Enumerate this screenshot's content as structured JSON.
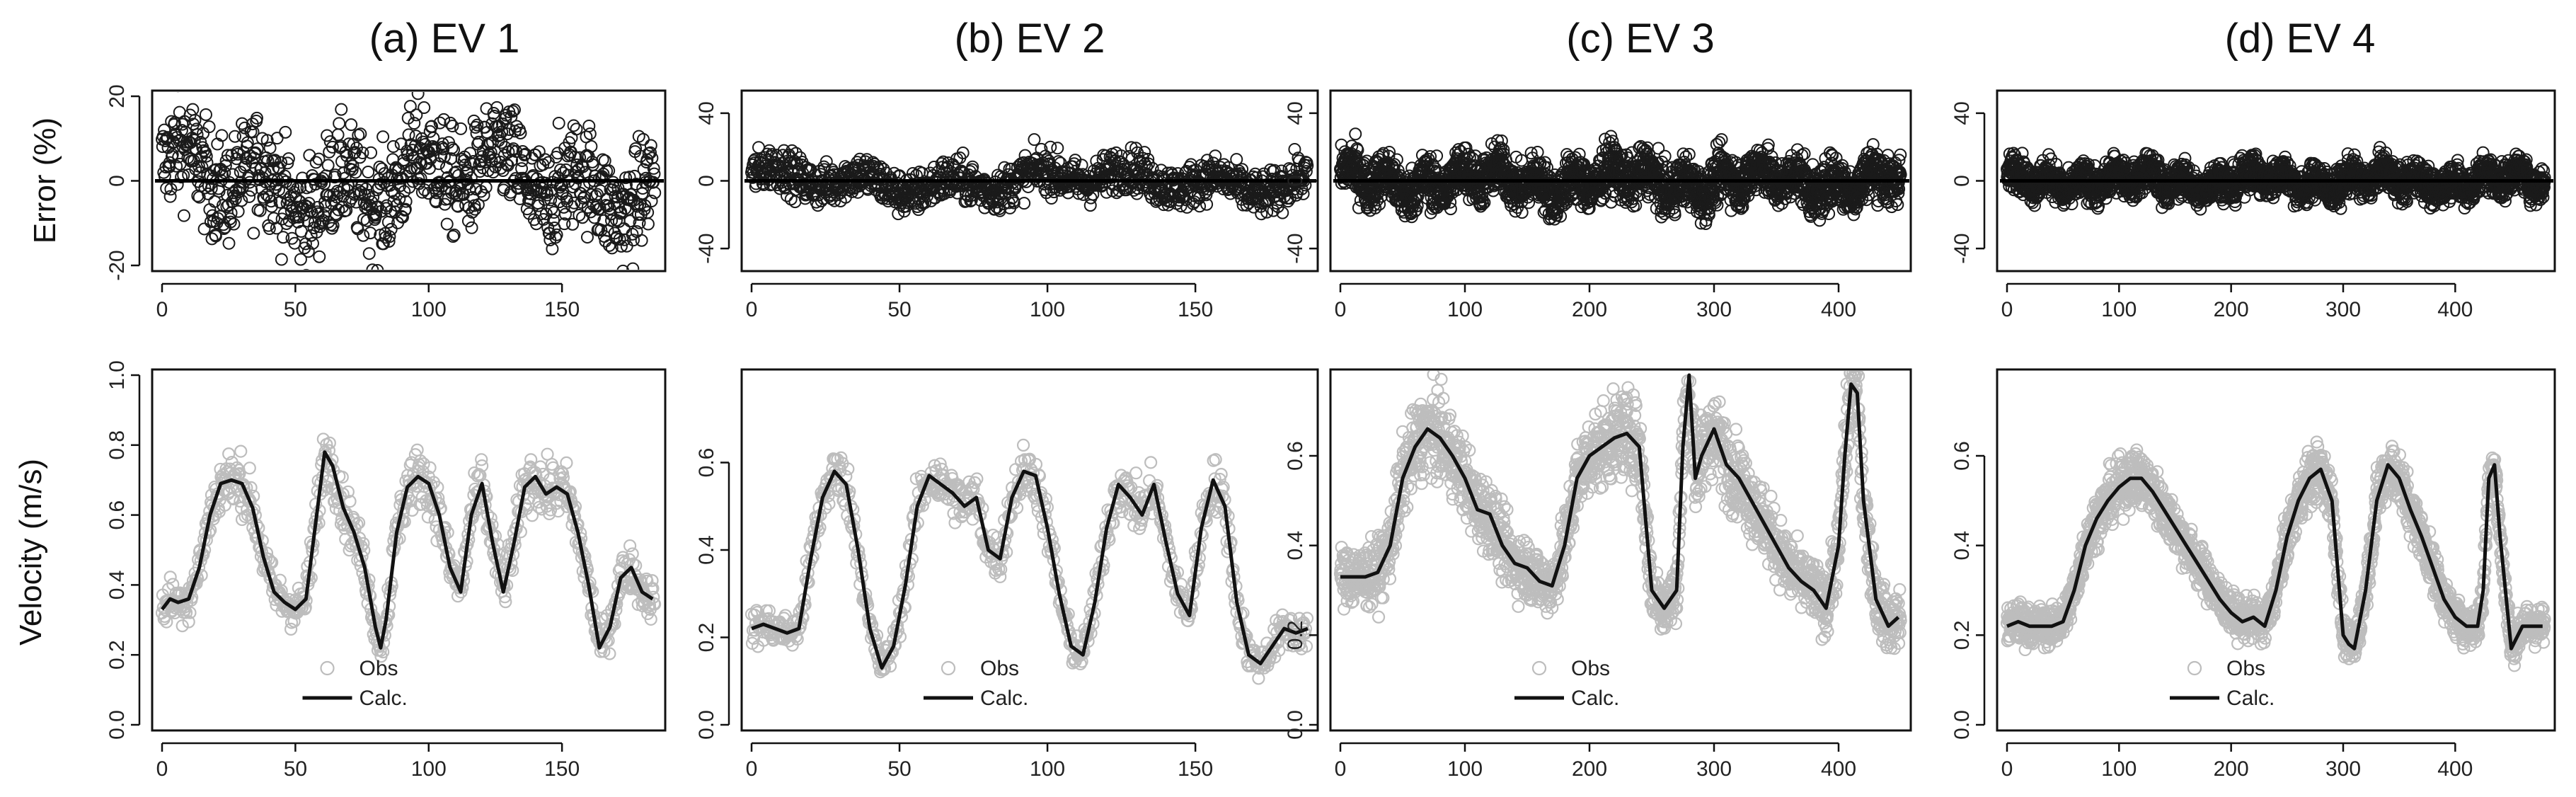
{
  "figure": {
    "row_labels": {
      "error": "Error (%)",
      "velocity": "Velocity (m/s)"
    },
    "colors": {
      "error_points": "#1a1a1a",
      "obs_points": "#bdbdbd",
      "calc_line": "#111111"
    }
  },
  "chart_data": [
    {
      "id": "a",
      "type": "scatter",
      "title": "(a) EV  1",
      "ylabel": "Error (%)",
      "xlim": [
        0,
        185
      ],
      "ylim": [
        -20,
        20
      ],
      "xticks": [
        0,
        50,
        100,
        150
      ],
      "yticks": [
        -20,
        0,
        20
      ],
      "series": [
        {
          "name": "Error",
          "marker": "open-circle",
          "n_points": 900,
          "spread": 12
        }
      ],
      "reference_line": {
        "y": 0
      }
    },
    {
      "id": "b",
      "type": "scatter",
      "title": "(b) EV  2",
      "ylabel": "",
      "xlim": [
        0,
        188
      ],
      "ylim": [
        -50,
        50
      ],
      "xticks": [
        0,
        50,
        100,
        150
      ],
      "yticks": [
        -40,
        0,
        40
      ],
      "series": [
        {
          "name": "Error",
          "marker": "open-circle",
          "n_points": 1100,
          "spread": 12
        }
      ],
      "reference_line": {
        "y": 0
      }
    },
    {
      "id": "c",
      "type": "scatter",
      "title": "(c) EV  3",
      "ylabel": "",
      "xlim": [
        0,
        450
      ],
      "ylim": [
        -50,
        50
      ],
      "xticks": [
        0,
        100,
        200,
        300,
        400
      ],
      "yticks": [
        -40,
        0,
        40
      ],
      "series": [
        {
          "name": "Error",
          "marker": "open-circle",
          "n_points": 2200,
          "spread": 14
        }
      ],
      "reference_line": {
        "y": 0
      }
    },
    {
      "id": "d",
      "type": "scatter",
      "title": "(d) EV 4",
      "ylabel": "",
      "xlim": [
        0,
        480
      ],
      "ylim": [
        -50,
        50
      ],
      "xticks": [
        0,
        100,
        200,
        300,
        400
      ],
      "yticks": [
        -40,
        0,
        40
      ],
      "series": [
        {
          "name": "Error",
          "marker": "open-circle",
          "n_points": 2400,
          "spread": 10
        }
      ],
      "reference_line": {
        "y": 0
      }
    },
    {
      "id": "a2",
      "type": "line",
      "ylabel": "Velocity (m/s)",
      "xlim": [
        0,
        185
      ],
      "ylim": [
        0,
        1.0
      ],
      "xticks": [
        0,
        50,
        100,
        150
      ],
      "yticks": [
        0.0,
        0.2,
        0.4,
        0.6,
        0.8,
        1.0
      ],
      "legend": {
        "placement": "bottom-center",
        "entries": [
          "Obs",
          "Calc."
        ]
      },
      "series": [
        {
          "name": "Calc.",
          "x": [
            0,
            3,
            6,
            10,
            14,
            18,
            22,
            26,
            30,
            34,
            38,
            42,
            46,
            50,
            54,
            58,
            61,
            64,
            68,
            72,
            76,
            80,
            82,
            84,
            88,
            92,
            96,
            100,
            104,
            108,
            112,
            116,
            120,
            124,
            128,
            132,
            136,
            140,
            144,
            148,
            152,
            156,
            160,
            164,
            168,
            172,
            176,
            180,
            184
          ],
          "y": [
            0.33,
            0.36,
            0.35,
            0.36,
            0.45,
            0.6,
            0.69,
            0.7,
            0.69,
            0.62,
            0.48,
            0.38,
            0.35,
            0.33,
            0.36,
            0.6,
            0.78,
            0.74,
            0.62,
            0.55,
            0.45,
            0.28,
            0.22,
            0.3,
            0.55,
            0.68,
            0.71,
            0.69,
            0.6,
            0.45,
            0.38,
            0.6,
            0.69,
            0.52,
            0.38,
            0.52,
            0.68,
            0.71,
            0.66,
            0.68,
            0.66,
            0.55,
            0.4,
            0.22,
            0.28,
            0.42,
            0.45,
            0.38,
            0.36
          ]
        },
        {
          "name": "Obs",
          "marker": "open-circle",
          "noise": 0.06
        }
      ]
    },
    {
      "id": "b2",
      "type": "line",
      "ylabel": "",
      "xlim": [
        0,
        188
      ],
      "ylim": [
        0,
        0.8
      ],
      "xticks": [
        0,
        50,
        100,
        150
      ],
      "yticks": [
        0.0,
        0.2,
        0.4,
        0.6
      ],
      "legend": {
        "placement": "bottom-center",
        "entries": [
          "Obs",
          "Calc."
        ]
      },
      "series": [
        {
          "name": "Calc.",
          "x": [
            0,
            4,
            8,
            12,
            16,
            20,
            24,
            28,
            32,
            36,
            40,
            44,
            48,
            52,
            56,
            60,
            64,
            68,
            72,
            76,
            80,
            84,
            88,
            92,
            96,
            100,
            104,
            108,
            112,
            116,
            120,
            124,
            128,
            132,
            136,
            140,
            144,
            148,
            152,
            156,
            160,
            164,
            168,
            172,
            176,
            180,
            184,
            188
          ],
          "y": [
            0.22,
            0.23,
            0.22,
            0.21,
            0.22,
            0.38,
            0.52,
            0.58,
            0.55,
            0.4,
            0.22,
            0.13,
            0.18,
            0.32,
            0.5,
            0.57,
            0.55,
            0.53,
            0.5,
            0.52,
            0.4,
            0.38,
            0.52,
            0.58,
            0.57,
            0.45,
            0.3,
            0.18,
            0.16,
            0.28,
            0.45,
            0.55,
            0.52,
            0.48,
            0.55,
            0.42,
            0.3,
            0.25,
            0.45,
            0.56,
            0.5,
            0.28,
            0.16,
            0.14,
            0.18,
            0.22,
            0.21,
            0.22
          ]
        },
        {
          "name": "Obs",
          "marker": "open-circle",
          "noise": 0.05
        }
      ]
    },
    {
      "id": "c2",
      "type": "line",
      "ylabel": "",
      "xlim": [
        0,
        450
      ],
      "ylim": [
        0,
        0.78
      ],
      "xticks": [
        0,
        100,
        200,
        300,
        400
      ],
      "yticks": [
        0.0,
        0.2,
        0.4,
        0.6
      ],
      "legend": {
        "placement": "bottom-center",
        "entries": [
          "Obs",
          "Calc."
        ]
      },
      "series": [
        {
          "name": "Calc.",
          "x": [
            0,
            10,
            20,
            30,
            40,
            50,
            60,
            70,
            80,
            90,
            100,
            110,
            120,
            130,
            140,
            150,
            160,
            170,
            180,
            190,
            200,
            210,
            220,
            230,
            240,
            250,
            260,
            270,
            275,
            280,
            285,
            290,
            300,
            310,
            320,
            330,
            340,
            350,
            360,
            370,
            380,
            390,
            400,
            405,
            410,
            415,
            420,
            430,
            440,
            448
          ],
          "y": [
            0.33,
            0.33,
            0.33,
            0.34,
            0.4,
            0.55,
            0.62,
            0.66,
            0.64,
            0.6,
            0.55,
            0.48,
            0.47,
            0.4,
            0.36,
            0.35,
            0.32,
            0.31,
            0.4,
            0.55,
            0.6,
            0.62,
            0.64,
            0.65,
            0.62,
            0.3,
            0.26,
            0.3,
            0.62,
            0.78,
            0.55,
            0.6,
            0.66,
            0.58,
            0.55,
            0.5,
            0.45,
            0.4,
            0.35,
            0.32,
            0.3,
            0.26,
            0.4,
            0.6,
            0.76,
            0.74,
            0.5,
            0.28,
            0.22,
            0.24
          ]
        },
        {
          "name": "Obs",
          "marker": "open-circle",
          "noise": 0.07
        }
      ]
    },
    {
      "id": "d2",
      "type": "line",
      "ylabel": "",
      "xlim": [
        0,
        480
      ],
      "ylim": [
        0,
        0.78
      ],
      "xticks": [
        0,
        100,
        200,
        300,
        400
      ],
      "yticks": [
        0.0,
        0.2,
        0.4,
        0.6
      ],
      "legend": {
        "placement": "bottom-center",
        "entries": [
          "Obs",
          "Calc."
        ]
      },
      "series": [
        {
          "name": "Calc.",
          "x": [
            0,
            10,
            20,
            30,
            40,
            50,
            60,
            70,
            80,
            90,
            100,
            110,
            120,
            130,
            140,
            150,
            160,
            170,
            180,
            190,
            200,
            210,
            220,
            230,
            240,
            250,
            260,
            270,
            280,
            290,
            300,
            305,
            310,
            320,
            330,
            340,
            350,
            360,
            370,
            380,
            390,
            400,
            410,
            420,
            425,
            430,
            435,
            440,
            450,
            460,
            470,
            478
          ],
          "y": [
            0.22,
            0.23,
            0.22,
            0.22,
            0.22,
            0.23,
            0.3,
            0.4,
            0.46,
            0.5,
            0.53,
            0.55,
            0.55,
            0.52,
            0.48,
            0.44,
            0.4,
            0.36,
            0.32,
            0.28,
            0.25,
            0.23,
            0.24,
            0.22,
            0.3,
            0.42,
            0.5,
            0.55,
            0.57,
            0.5,
            0.2,
            0.18,
            0.17,
            0.3,
            0.5,
            0.58,
            0.55,
            0.48,
            0.42,
            0.35,
            0.28,
            0.24,
            0.22,
            0.22,
            0.3,
            0.55,
            0.58,
            0.42,
            0.17,
            0.22,
            0.22,
            0.22
          ]
        },
        {
          "name": "Obs",
          "marker": "open-circle",
          "noise": 0.05
        }
      ]
    }
  ]
}
